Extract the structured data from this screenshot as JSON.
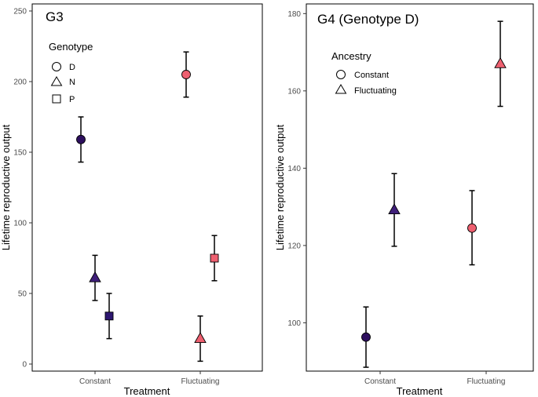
{
  "chart_data": [
    {
      "type": "scatter",
      "title": "G3",
      "xlabel": "Treatment",
      "ylabel": "Lifetime reproductive output",
      "categories": [
        "Constant",
        "Fluctuating"
      ],
      "ylim": [
        -5,
        255
      ],
      "yticks": [
        0,
        50,
        100,
        150,
        200,
        250
      ],
      "legend": {
        "title": "Genotype",
        "placement": "top-left",
        "entries": [
          {
            "label": "D",
            "shape": "circle"
          },
          {
            "label": "N",
            "shape": "triangle"
          },
          {
            "label": "P",
            "shape": "square"
          }
        ]
      },
      "series": [
        {
          "name": "D",
          "shape": "circle",
          "points": [
            {
              "category": "Constant",
              "offset": -1,
              "y": 159,
              "lower": 143,
              "upper": 175,
              "color": "#2d0f5e"
            },
            {
              "category": "Fluctuating",
              "offset": -1,
              "y": 205,
              "lower": 189,
              "upper": 221,
              "color": "#ee6070"
            }
          ]
        },
        {
          "name": "N",
          "shape": "triangle",
          "points": [
            {
              "category": "Constant",
              "offset": 0,
              "y": 61,
              "lower": 45,
              "upper": 77,
              "color": "#3f1f7a"
            },
            {
              "category": "Fluctuating",
              "offset": 0,
              "y": 18,
              "lower": 2,
              "upper": 34,
              "color": "#ee6070"
            }
          ]
        },
        {
          "name": "P",
          "shape": "square",
          "points": [
            {
              "category": "Constant",
              "offset": 1,
              "y": 34,
              "lower": 18,
              "upper": 50,
              "color": "#2d1670"
            },
            {
              "category": "Fluctuating",
              "offset": 1,
              "y": 75,
              "lower": 59,
              "upper": 91,
              "color": "#ee6070"
            }
          ]
        }
      ]
    },
    {
      "type": "scatter",
      "title": "G4 (Genotype D)",
      "xlabel": "Treatment",
      "ylabel": "Lifetime reproductive output",
      "categories": [
        "Constant",
        "Fluctuating"
      ],
      "ylim": [
        87.5,
        182.5
      ],
      "yticks": [
        100,
        120,
        140,
        160,
        180
      ],
      "legend": {
        "title": "Ancestry",
        "placement": "top-left",
        "entries": [
          {
            "label": "Constant",
            "shape": "circle"
          },
          {
            "label": "Fluctuating",
            "shape": "triangle"
          }
        ]
      },
      "series": [
        {
          "name": "Constant",
          "shape": "circle",
          "points": [
            {
              "category": "Constant",
              "offset": -1,
              "y": 96.3,
              "lower": 88.5,
              "upper": 104.1,
              "color": "#2d0f5e"
            },
            {
              "category": "Fluctuating",
              "offset": -1,
              "y": 124.5,
              "lower": 115,
              "upper": 134.2,
              "color": "#ee6070"
            }
          ]
        },
        {
          "name": "Fluctuating",
          "shape": "triangle",
          "points": [
            {
              "category": "Constant",
              "offset": 1,
              "y": 129.2,
              "lower": 119.8,
              "upper": 138.6,
              "color": "#3f1f7a"
            },
            {
              "category": "Fluctuating",
              "offset": 1,
              "y": 167,
              "lower": 156,
              "upper": 178,
              "color": "#ee6070"
            }
          ]
        }
      ]
    }
  ]
}
